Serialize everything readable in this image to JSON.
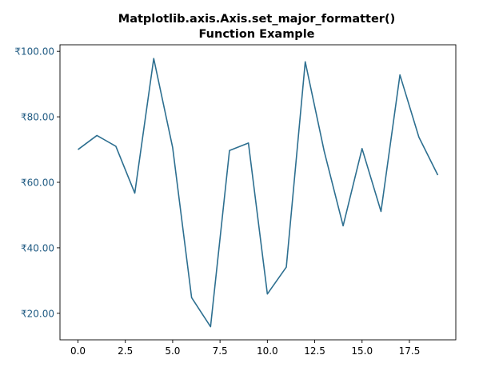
{
  "chart_data": {
    "type": "line",
    "title_lines": [
      "Matplotlib.axis.Axis.set_major_formatter()",
      "Function Example"
    ],
    "xlabel": "",
    "ylabel": "",
    "xlim": [
      -0.95,
      19.95
    ],
    "ylim": [
      11.9,
      102.0
    ],
    "x_ticks": [
      0.0,
      2.5,
      5.0,
      7.5,
      10.0,
      12.5,
      15.0,
      17.5
    ],
    "x_tick_labels": [
      "0.0",
      "2.5",
      "5.0",
      "7.5",
      "10.0",
      "12.5",
      "15.0",
      "17.5"
    ],
    "y_ticks": [
      20,
      40,
      60,
      80,
      100
    ],
    "y_tick_labels": [
      "₹20.00",
      "₹40.00",
      "₹60.00",
      "₹80.00",
      "₹100.00"
    ],
    "y_tick_label_color": "#1f5a82",
    "grid": false,
    "series": [
      {
        "color": "#2d6f90",
        "x": [
          0,
          1,
          2,
          3,
          4,
          5,
          6,
          7,
          8,
          9,
          10,
          11,
          12,
          13,
          14,
          15,
          16,
          17,
          18,
          19
        ],
        "values": [
          70.0,
          74.3,
          71.0,
          56.7,
          97.8,
          70.6,
          24.8,
          15.9,
          69.7,
          72.0,
          25.9,
          34.1,
          96.8,
          69.5,
          46.7,
          70.3,
          51.1,
          92.8,
          73.8,
          62.2
        ]
      }
    ]
  }
}
